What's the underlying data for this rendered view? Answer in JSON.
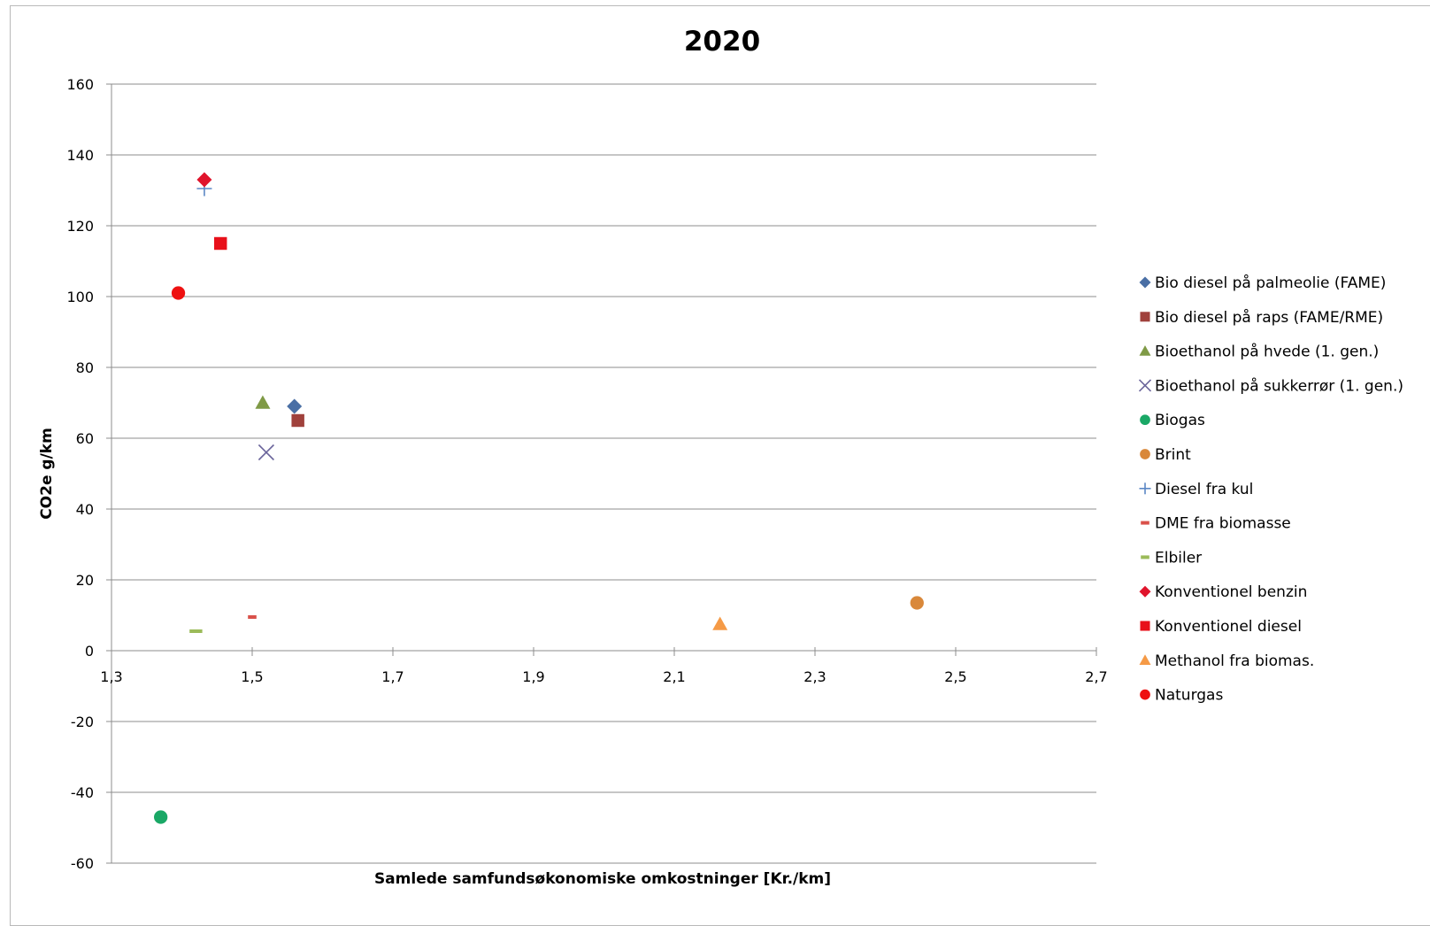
{
  "chart_data": {
    "type": "scatter",
    "title": "2020",
    "xlabel": "Samlede samfundsøkonomiske omkostninger [Kr./km]",
    "ylabel": "CO2e g/km",
    "xlim": [
      1.3,
      2.7
    ],
    "ylim": [
      -60,
      160
    ],
    "xticks": [
      "1,3",
      "1,5",
      "1,7",
      "1,9",
      "2,1",
      "2,3",
      "2,5",
      "2,7"
    ],
    "yticks": [
      "160",
      "140",
      "120",
      "100",
      "80",
      "60",
      "40",
      "20",
      "0",
      "-20",
      "-40",
      "-60"
    ],
    "grid": "horizontal",
    "legend_position": "right",
    "series": [
      {
        "name": "Bio diesel på palmeolie (FAME)",
        "marker": "diamond",
        "color": "#4a6fa5",
        "points": [
          [
            1.56,
            69
          ]
        ]
      },
      {
        "name": "Bio diesel på raps (FAME/RME)",
        "marker": "square",
        "color": "#a0413c",
        "points": [
          [
            1.565,
            65
          ]
        ]
      },
      {
        "name": "Bioethanol på hvede (1. gen.)",
        "marker": "triangle",
        "color": "#7f9a46",
        "points": [
          [
            1.515,
            70
          ]
        ]
      },
      {
        "name": "Bioethanol på sukkerrør (1. gen.)",
        "marker": "x",
        "color": "#6a649b",
        "points": [
          [
            1.52,
            56
          ]
        ]
      },
      {
        "name": "Biogas",
        "marker": "circle",
        "color": "#1aa866",
        "points": [
          [
            1.37,
            -47
          ]
        ]
      },
      {
        "name": "Brint",
        "marker": "circle",
        "color": "#d9883a",
        "points": [
          [
            2.445,
            13.5
          ]
        ]
      },
      {
        "name": "Diesel fra kul",
        "marker": "plus",
        "color": "#5b87c5",
        "points": [
          [
            1.432,
            130.5
          ]
        ]
      },
      {
        "name": "DME fra biomasse",
        "marker": "dash",
        "color": "#d9514a",
        "points": [
          [
            1.5,
            9.5
          ]
        ]
      },
      {
        "name": "Elbiler",
        "marker": "dash",
        "color": "#9bbb59",
        "points": [
          [
            1.42,
            5.5
          ]
        ]
      },
      {
        "name": "Konventionel benzin",
        "marker": "diamond",
        "color": "#e0142c",
        "points": [
          [
            1.432,
            133
          ]
        ]
      },
      {
        "name": "Konventionel diesel",
        "marker": "square",
        "color": "#e8101a",
        "points": [
          [
            1.455,
            115
          ]
        ]
      },
      {
        "name": "Methanol fra biomas.",
        "marker": "triangle",
        "color": "#f59a46",
        "points": [
          [
            2.165,
            7.5
          ]
        ]
      },
      {
        "name": "Naturgas",
        "marker": "circle",
        "color": "#ee1111",
        "points": [
          [
            1.395,
            101
          ]
        ]
      }
    ]
  }
}
